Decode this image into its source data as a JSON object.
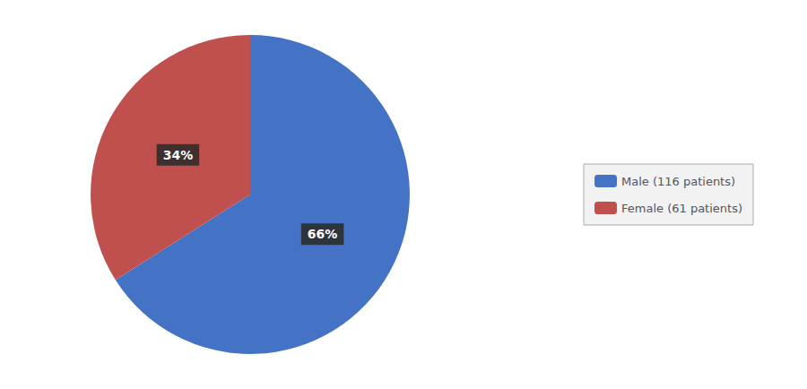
{
  "chart_data": {
    "type": "pie",
    "categories": [
      "Male (116 patients)",
      "Female (61 patients)"
    ],
    "values": [
      66,
      34
    ],
    "value_labels": [
      "66%",
      "34%"
    ],
    "colors": [
      "#4472C4",
      "#C0504D"
    ],
    "data_labels": true,
    "legend": "right"
  }
}
